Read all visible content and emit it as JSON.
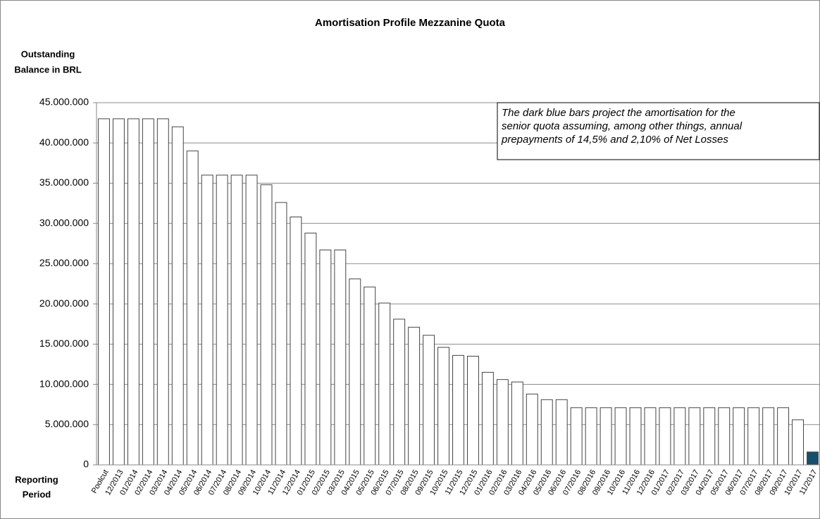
{
  "chart_data": {
    "type": "bar",
    "title": "Amortisation Profile Mezzanine Quota",
    "y_label": [
      "Outstanding",
      "Balance in BRL"
    ],
    "x_label": [
      "Reporting",
      "Period"
    ],
    "annotation": [
      "The dark blue bars project the amortisation for the",
      "senior quota assuming, among other things, annual",
      "prepayments of 14,5% and 2,10% of Net Losses"
    ],
    "categories": [
      "Poolcut",
      "12/2013",
      "01/2014",
      "02/2014",
      "03/2014",
      "04/2014",
      "05/2014",
      "06/2014",
      "07/2014",
      "08/2014",
      "09/2014",
      "10/2014",
      "11/2014",
      "12/2014",
      "01/2015",
      "02/2015",
      "03/2015",
      "04/2015",
      "05/2015",
      "06/2015",
      "07/2015",
      "08/2015",
      "09/2015",
      "10/2015",
      "11/2015",
      "12/2015",
      "01/2016",
      "02/2016",
      "03/2016",
      "04/2016",
      "05/2016",
      "06/2016",
      "07/2016",
      "08/2016",
      "09/2016",
      "10/2016",
      "11/2016",
      "12/2016",
      "01/2017",
      "02/2017",
      "03/2017",
      "04/2017",
      "05/2017",
      "06/2017",
      "07/2017",
      "08/2017",
      "09/2017",
      "10/2017",
      "11/2017"
    ],
    "values": [
      43000000,
      43000000,
      43000000,
      43000000,
      43000000,
      42000000,
      39000000,
      36000000,
      36000000,
      36000000,
      36000000,
      34800000,
      32600000,
      30800000,
      28800000,
      26700000,
      26700000,
      23100000,
      22100000,
      20100000,
      18100000,
      17100000,
      16100000,
      14600000,
      13600000,
      13500000,
      11500000,
      10600000,
      10300000,
      8800000,
      8100000,
      8100000,
      7100000,
      7100000,
      7100000,
      7100000,
      7100000,
      7100000,
      7100000,
      7100000,
      7100000,
      7100000,
      7100000,
      7100000,
      7100000,
      7100000,
      7100000,
      5600000,
      1600000
    ],
    "colors": [
      "#ffffff",
      "#ffffff",
      "#ffffff",
      "#ffffff",
      "#ffffff",
      "#ffffff",
      "#ffffff",
      "#ffffff",
      "#ffffff",
      "#ffffff",
      "#ffffff",
      "#ffffff",
      "#ffffff",
      "#ffffff",
      "#ffffff",
      "#ffffff",
      "#ffffff",
      "#ffffff",
      "#ffffff",
      "#ffffff",
      "#ffffff",
      "#ffffff",
      "#ffffff",
      "#ffffff",
      "#ffffff",
      "#ffffff",
      "#ffffff",
      "#ffffff",
      "#ffffff",
      "#ffffff",
      "#ffffff",
      "#ffffff",
      "#ffffff",
      "#ffffff",
      "#ffffff",
      "#ffffff",
      "#ffffff",
      "#ffffff",
      "#ffffff",
      "#ffffff",
      "#ffffff",
      "#ffffff",
      "#ffffff",
      "#ffffff",
      "#ffffff",
      "#ffffff",
      "#ffffff",
      "#ffffff",
      "#17506e"
    ],
    "ylim": [
      0,
      45000000
    ],
    "yticks": [
      0,
      {
        "value": 5000000,
        "label": "5.000.000"
      },
      {
        "value": 10000000,
        "label": "10.000.000"
      },
      {
        "value": 15000000,
        "label": "15.000.000"
      },
      {
        "value": 20000000,
        "label": "20.000.000"
      },
      {
        "value": 25000000,
        "label": "25.000.000"
      },
      {
        "value": 30000000,
        "label": "30.000.000"
      },
      {
        "value": 35000000,
        "label": "35.000.000"
      },
      {
        "value": 40000000,
        "label": "40.000.000"
      },
      {
        "value": 45000000,
        "label": "45.000.000"
      }
    ],
    "grid": true
  }
}
